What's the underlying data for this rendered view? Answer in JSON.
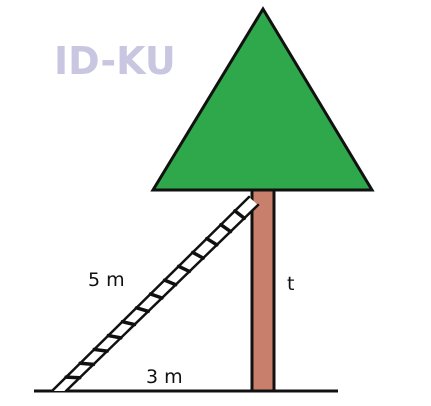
{
  "watermark": "ID-KU",
  "labels": {
    "ladder_length": "5 m",
    "ground_distance": "3 m",
    "height": "t"
  },
  "colors": {
    "canopy": "#2ea84a",
    "trunk": "#c87f6b",
    "ladder_fill": "#ffffff",
    "outline": "#111111",
    "watermark": "#c9c6e2"
  }
}
